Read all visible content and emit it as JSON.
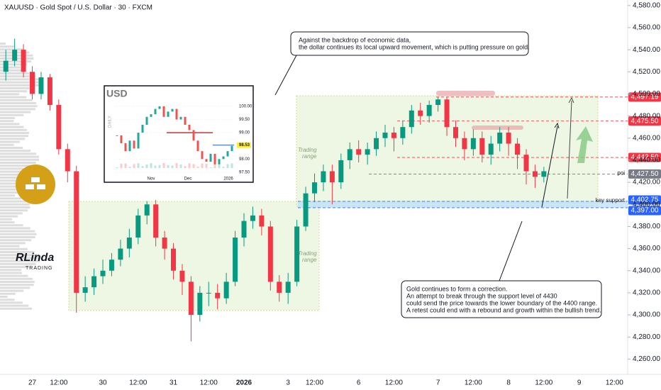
{
  "chart_data": {
    "type": "candlestick",
    "title": "XAUUSD · Gold Spot / U.S. Dollar · 30 · FXCM",
    "categories": [
      null,
      null,
      null,
      "27",
      null,
      null,
      "12:00",
      null,
      null,
      null,
      null,
      "30",
      null,
      null,
      null,
      "12:00",
      null,
      null,
      null,
      "31",
      null,
      null,
      null,
      "12:00",
      null,
      null,
      null,
      "2026",
      null,
      null,
      null,
      null,
      "3",
      null,
      null,
      "12:00",
      null,
      null,
      null,
      null,
      "6",
      null,
      null,
      null,
      "12:00",
      null,
      null,
      null,
      null,
      "7",
      null,
      null,
      null,
      "12:00",
      null,
      null,
      null,
      "8",
      null,
      null,
      null,
      "12:00",
      null,
      null,
      null,
      "9",
      null,
      null,
      null,
      "12:00",
      null
    ],
    "open": [
      4520,
      4530,
      4540,
      4520,
      4500,
      4515,
      4490,
      4450,
      4430,
      4320,
      4325,
      4335,
      4340,
      4350,
      4360,
      4370,
      4390,
      4400,
      4370,
      4360,
      4340,
      4330,
      4300,
      4320,
      4320,
      4315,
      4330,
      4370,
      4385,
      4390,
      4380,
      4330,
      4320,
      4330,
      4380,
      4410,
      4420,
      4430,
      4420,
      4440,
      4450,
      4445,
      4450,
      4460,
      4465,
      4460,
      4470,
      4485,
      4480,
      4490,
      4495,
      4470,
      4460,
      4450,
      4460,
      4445,
      4455,
      4465,
      4455,
      4445,
      4430,
      4425,
      null,
      null,
      null,
      null,
      null,
      null,
      null,
      null,
      null
    ],
    "high": [
      4540,
      4550,
      4545,
      4525,
      4520,
      4518,
      4495,
      4455,
      4435,
      4335,
      4342,
      4350,
      4356,
      4368,
      4378,
      4396,
      4403,
      4404,
      4376,
      4365,
      4346,
      4335,
      4326,
      4330,
      4328,
      4338,
      4376,
      4392,
      4398,
      4396,
      4385,
      4336,
      4338,
      4386,
      4416,
      4428,
      4436,
      4436,
      4446,
      4456,
      4458,
      4456,
      4466,
      4472,
      4470,
      4476,
      4490,
      4492,
      4494,
      4497,
      4497,
      4476,
      4466,
      4468,
      4466,
      4462,
      4470,
      4470,
      4460,
      4450,
      4436,
      4434,
      null,
      null,
      null,
      null,
      null,
      null,
      null,
      null,
      null
    ],
    "low": [
      4512,
      4525,
      4515,
      4495,
      4495,
      4485,
      4445,
      4420,
      4302,
      4312,
      4318,
      4328,
      4335,
      4344,
      4352,
      4364,
      4382,
      4362,
      4350,
      4332,
      4318,
      4276,
      4294,
      4308,
      4305,
      4310,
      4326,
      4362,
      4378,
      4372,
      4322,
      4312,
      4310,
      4326,
      4376,
      4402,
      4412,
      4400,
      4414,
      4432,
      4438,
      4436,
      4444,
      4452,
      4448,
      4454,
      4464,
      4472,
      4474,
      4484,
      4462,
      4452,
      4440,
      4444,
      4438,
      4436,
      4448,
      4444,
      4432,
      4418,
      4415,
      4420,
      null,
      null,
      null,
      null,
      null,
      null,
      null,
      null,
      null
    ],
    "close": [
      4530,
      4540,
      4520,
      4500,
      4515,
      4490,
      4450,
      4430,
      4320,
      4325,
      4335,
      4340,
      4350,
      4360,
      4370,
      4390,
      4400,
      4370,
      4360,
      4340,
      4330,
      4300,
      4320,
      4320,
      4315,
      4330,
      4370,
      4385,
      4390,
      4380,
      4330,
      4320,
      4330,
      4380,
      4410,
      4420,
      4430,
      4420,
      4440,
      4450,
      4445,
      4450,
      4460,
      4465,
      4460,
      4470,
      4485,
      4480,
      4490,
      4495,
      4470,
      4460,
      4450,
      4460,
      4445,
      4455,
      4465,
      4455,
      4445,
      4430,
      4425,
      4430,
      null,
      null,
      null,
      null,
      null,
      null,
      null,
      null,
      null
    ],
    "up_color": "#089981",
    "down_color": "#f23645",
    "ylim": [
      4250,
      4585
    ],
    "yticks": [
      {
        "value": 4260,
        "label": "4,260.00"
      },
      {
        "value": 4280,
        "label": "4,280.00"
      },
      {
        "value": 4300,
        "label": "4,300.00"
      },
      {
        "value": 4320,
        "label": "4,320.00"
      },
      {
        "value": 4340,
        "label": "4,340.00"
      },
      {
        "value": 4360,
        "label": "4,360.00"
      },
      {
        "value": 4380,
        "label": "4,380.00"
      },
      {
        "value": 4400,
        "label": "4,400.00"
      },
      {
        "value": 4420,
        "label": "4,420.00"
      },
      {
        "value": 4440,
        "label": "4,440.00"
      },
      {
        "value": 4460,
        "label": "4,460.00"
      },
      {
        "value": 4480,
        "label": "4,480.00"
      },
      {
        "value": 4500,
        "label": "4,500.00"
      },
      {
        "value": 4520,
        "label": "4,520.00"
      },
      {
        "value": 4540,
        "label": "4,540.00"
      },
      {
        "value": 4560,
        "label": "4,560.00"
      },
      {
        "value": 4580,
        "label": "4,580.00"
      }
    ],
    "levels": [
      {
        "value": 4497.19,
        "label": "4,497.19",
        "color": "#f23645"
      },
      {
        "value": 4475.5,
        "label": "4,475.50",
        "color": "#f23645"
      },
      {
        "value": 4442.5,
        "label": "4,442.50",
        "color": "#f23645"
      },
      {
        "value": 4427.5,
        "label": "4,427.50",
        "color": "#787b86",
        "note": "poi"
      },
      {
        "value": 4402.75,
        "label": "4,402.75",
        "color": "#2962ff",
        "note": "key support"
      },
      {
        "value": 4397,
        "label": "4,397.00",
        "color": "#2962ff"
      }
    ],
    "range_labels": [
      [
        "Trading",
        "range"
      ],
      [
        "Trading",
        "range"
      ]
    ],
    "annotations": [
      [
        "Against the backdrop of economic data,",
        "the dollar continues its local upward movement, which is putting pressure on gold."
      ],
      [
        "Gold continues to form a correction.",
        "An attempt to break through the support level of 4430",
        "could send the price towards the lower boundary of the 4400 range.",
        "A retest could end with a rebound and growth within the bullish trend."
      ]
    ],
    "logo": [
      "RLinda",
      "TRADING"
    ]
  },
  "inset": {
    "title": "USD",
    "side_label": "DAILY",
    "xlabels": [
      "Nov",
      "Dec",
      "2026"
    ],
    "ylim": [
      97.31,
      100.67
    ],
    "yticks": [
      {
        "value": 100,
        "label": "100.00"
      },
      {
        "value": 99.5,
        "label": "99.50"
      },
      {
        "value": 99,
        "label": "99.00"
      },
      {
        "value": 98,
        "label": "98.00"
      },
      {
        "value": 97.5,
        "label": "97.50"
      }
    ],
    "values": [
      98.9,
      98.6,
      98.3,
      98.7,
      98.4,
      99.0,
      99.3,
      99.6,
      99.7,
      99.9,
      100.0,
      99.6,
      99.8,
      99.9,
      99.5,
      99.6,
      99.3,
      99.1,
      98.7,
      98.3,
      98.0,
      97.9,
      98.2,
      97.8,
      98.0,
      98.1,
      98.3,
      98.5
    ],
    "level": {
      "value": 98.53,
      "label": "98.53"
    }
  }
}
